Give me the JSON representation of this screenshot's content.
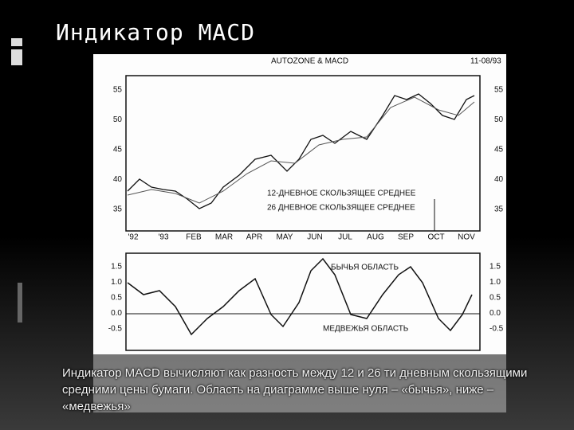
{
  "title": "Индикатор MACD",
  "figure": {
    "header": "AUTOZONE & MACD",
    "date": "11-08/93",
    "price_ticks": [
      "55",
      "50",
      "45",
      "40",
      "35"
    ],
    "months": [
      "'92",
      "'93",
      "FEB",
      "MAR",
      "APR",
      "MAY",
      "JUN",
      "JUL",
      "AUG",
      "SEP",
      "OCT",
      "NOV"
    ],
    "legend": [
      "12-ДНЕВНОЕ СКОЛЬЗЯЩЕЕ СРЕДНЕЕ",
      "26 ДНЕВНОЕ СКОЛЬЗЯЩЕЕ СРЕДНЕЕ"
    ],
    "macd_ticks": [
      "1.5",
      "1.0",
      "0.5",
      "0.0",
      "-0.5"
    ],
    "bull_label": "БЫЧЬЯ ОБЛАСТЬ",
    "bear_label": "МЕДВЕЖЬЯ ОБЛАСТЬ"
  },
  "caption": "Индикатор MACD вычисляют как разность между 12 и 26 ти дневным скользящими средними цены бумаги. Область на диаграмме выше нуля – «бычья», ниже – «медвежья»"
}
